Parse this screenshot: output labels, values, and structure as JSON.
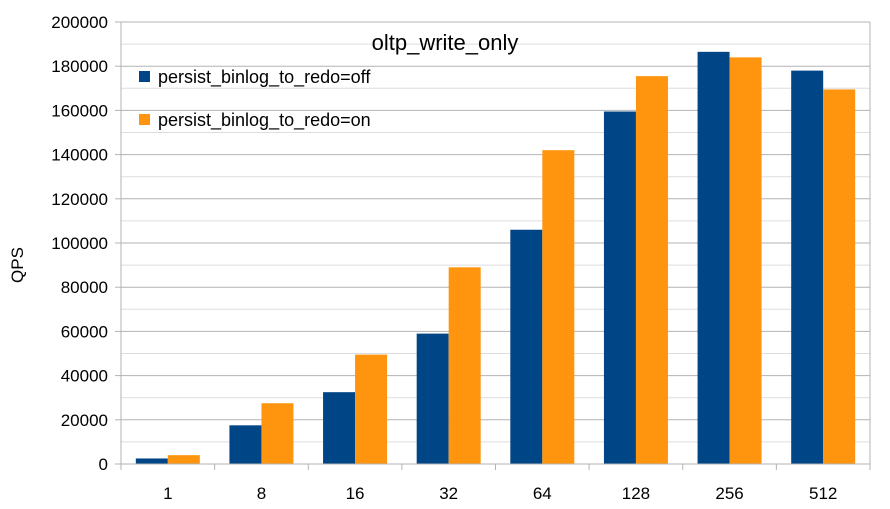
{
  "chart_data": {
    "type": "bar",
    "title": "oltp_write_only",
    "xlabel": "",
    "ylabel": "QPS",
    "categories": [
      "1",
      "8",
      "16",
      "32",
      "64",
      "128",
      "256",
      "512"
    ],
    "series": [
      {
        "name": "persist_binlog_to_redo=off",
        "color": "#004586",
        "values": [
          2500,
          17500,
          32500,
          59000,
          106000,
          159500,
          186500,
          178000
        ]
      },
      {
        "name": "persist_binlog_to_redo=on",
        "color": "#ff950e",
        "values": [
          4000,
          27500,
          49500,
          89000,
          142000,
          175500,
          184000,
          169500
        ]
      }
    ],
    "ylim": [
      0,
      200000
    ],
    "yticks": [
      "0",
      "20000",
      "40000",
      "60000",
      "80000",
      "100000",
      "120000",
      "140000",
      "160000",
      "180000",
      "200000"
    ],
    "grid": true,
    "legend_position": "top-left"
  }
}
